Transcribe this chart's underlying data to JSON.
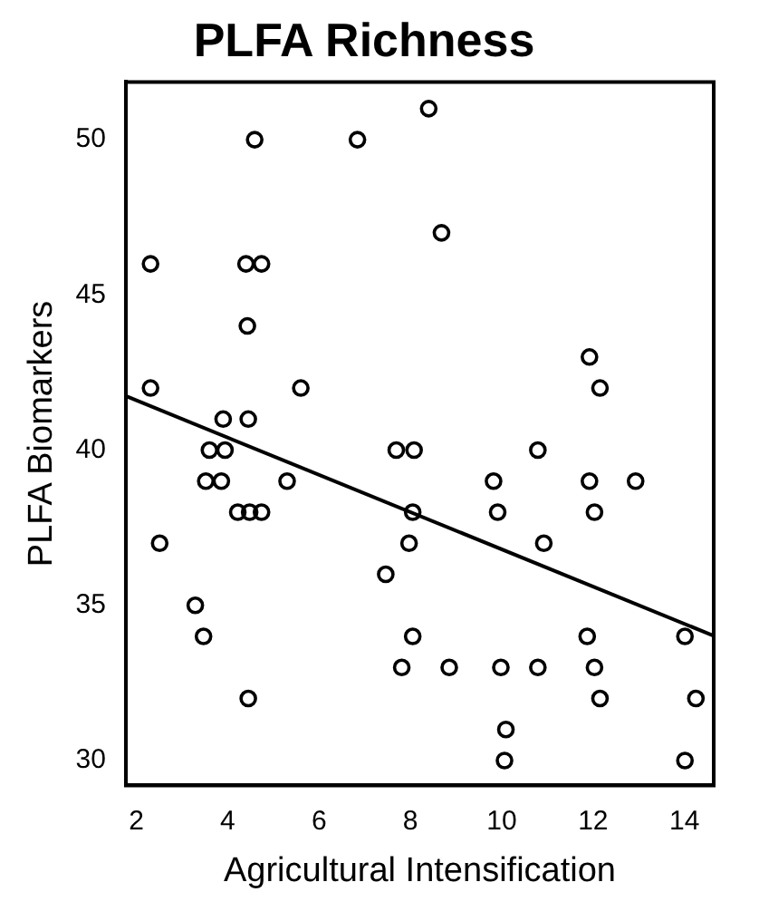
{
  "chart_data": {
    "type": "scatter",
    "title": "PLFA Richness",
    "xlabel": "Agricultural Intensification",
    "ylabel": "PLFA Biomarkers",
    "xlim": [
      1.77,
      14.64
    ],
    "ylim": [
      29.2,
      51.86
    ],
    "xticks": [
      2,
      4,
      6,
      8,
      10,
      12,
      14
    ],
    "yticks": [
      30,
      35,
      40,
      45,
      50
    ],
    "grid": false,
    "legend": false,
    "marker": "circle",
    "series": [
      {
        "type": "scatter",
        "color": "#000000",
        "x": [
          4.59,
          6.84,
          8.4,
          8.68,
          2.31,
          4.4,
          4.74,
          4.43,
          2.31,
          5.6,
          3.9,
          4.45,
          3.6,
          3.94,
          3.52,
          3.86,
          5.3,
          4.22,
          4.48,
          4.74,
          2.51,
          3.29,
          3.47,
          4.45,
          7.69,
          8.08,
          8.05,
          7.97,
          7.46,
          8.05,
          7.81,
          8.85,
          11.92,
          12.15,
          10.79,
          9.82,
          11.92,
          12.93,
          9.91,
          12.03,
          10.92,
          11.87,
          14.01,
          9.98,
          10.79,
          12.03,
          12.15,
          14.25,
          10.09,
          10.06,
          14.01
        ],
        "values": [
          50,
          50,
          51,
          47,
          46,
          46,
          46,
          44,
          42,
          42,
          41,
          41,
          40,
          40,
          39,
          39,
          39,
          38,
          38,
          38,
          37,
          35,
          34,
          32,
          40,
          40,
          38,
          37,
          36,
          34,
          33,
          33,
          43,
          42,
          40,
          39,
          39,
          39,
          38,
          38,
          37,
          34,
          34,
          33,
          33,
          33,
          32,
          32,
          31,
          30,
          30
        ]
      },
      {
        "type": "line",
        "color": "#000000",
        "x": [
          1.77,
          14.64
        ],
        "values": [
          41.74,
          34.02
        ],
        "marker": "none",
        "line_style": "solid"
      }
    ]
  }
}
